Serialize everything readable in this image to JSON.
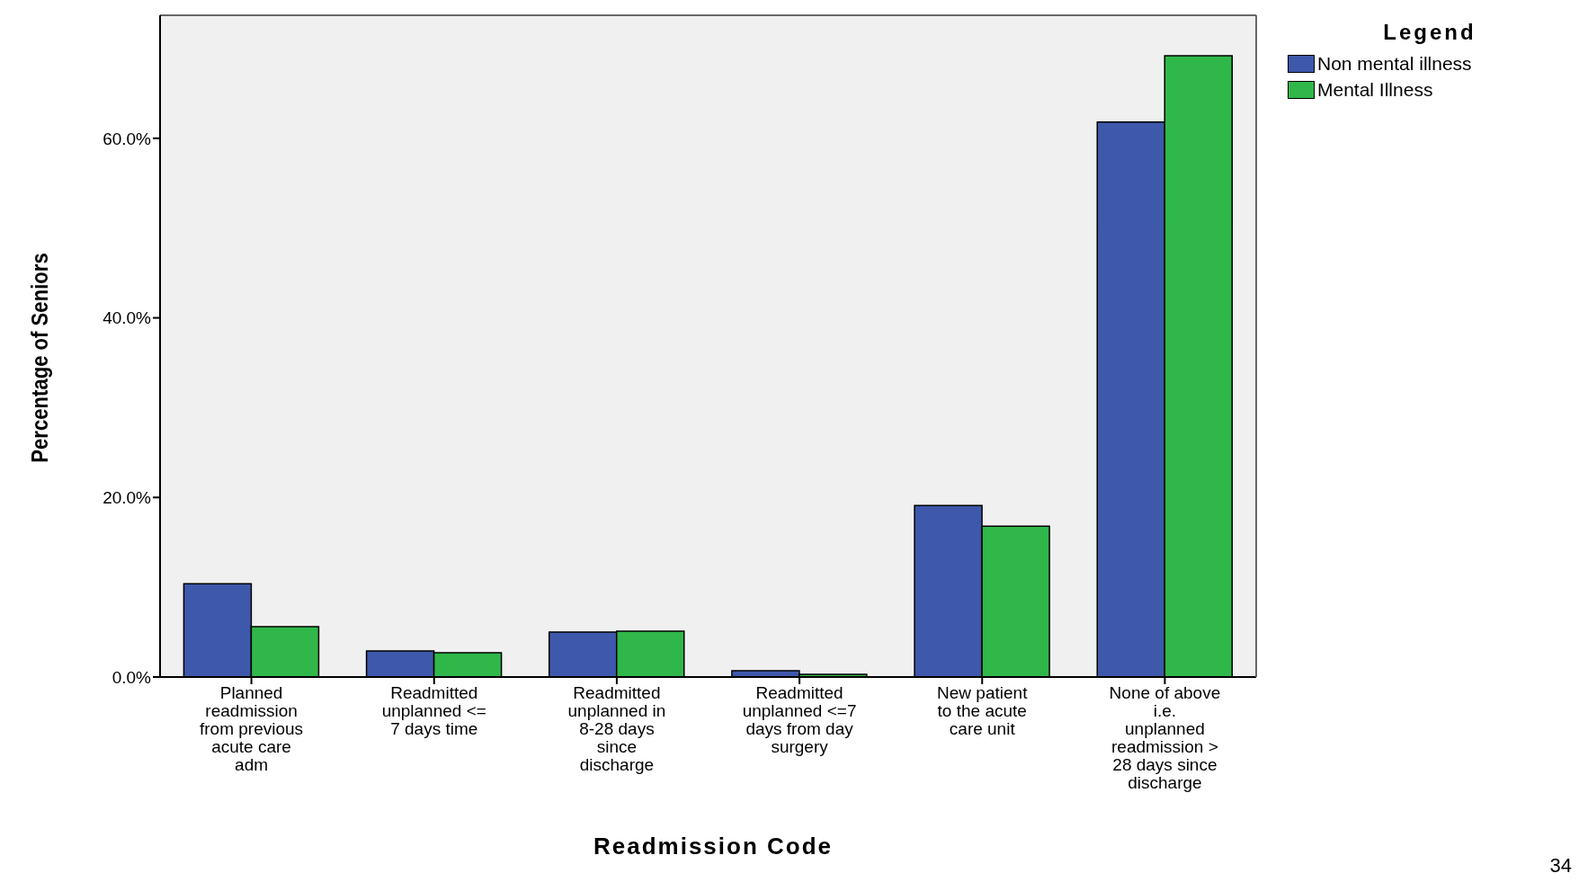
{
  "chart_data": {
    "type": "bar",
    "xlabel": "Readmission Code",
    "ylabel": "Percentage of Seniors",
    "legend_title": "Legend",
    "categories": [
      "Planned readmission from previous acute care adm",
      "Readmitted unplanned <= 7 days time",
      "Readmitted unplanned in 8-28 days since discharge",
      "Readmitted unplanned <=7 days from day surgery",
      "New patient to the acute care unit",
      "None of above i.e. unplanned readmission > 28 days since discharge"
    ],
    "series": [
      {
        "name": "Non mental illness",
        "color": "#3e58ab",
        "values": [
          10.4,
          2.9,
          5.0,
          0.7,
          19.1,
          61.8
        ]
      },
      {
        "name": "Mental Illness",
        "color": "#30b74a",
        "values": [
          5.6,
          2.7,
          5.1,
          0.3,
          16.8,
          69.2
        ]
      }
    ],
    "ylim": [
      0,
      73.7
    ],
    "yticks": [
      {
        "value": 0,
        "label": "0.0%"
      },
      {
        "value": 20,
        "label": "20.0%"
      },
      {
        "value": 40,
        "label": "40.0%"
      },
      {
        "value": 60,
        "label": "60.0%"
      }
    ],
    "legend": "top right",
    "annotations": [
      "34"
    ]
  }
}
